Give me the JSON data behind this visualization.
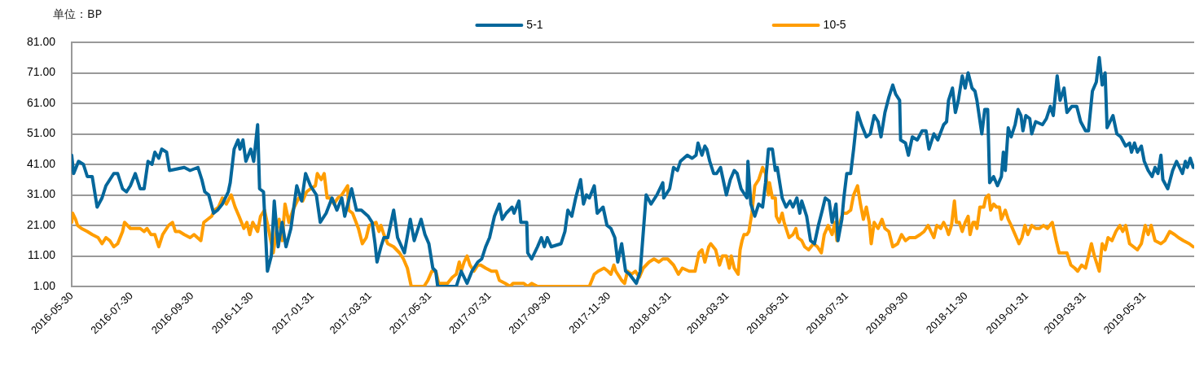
{
  "chart_data": {
    "type": "line",
    "ylabel": "单位：BP",
    "legend": "top",
    "grid": "y",
    "xlim": [
      "2016-05-30",
      "2019-07-21"
    ],
    "xticks": [
      "2016-05-30",
      "2016-07-30",
      "2016-09-30",
      "2016-11-30",
      "2017-01-31",
      "2017-03-31",
      "2017-05-31",
      "2017-07-31",
      "2017-09-30",
      "2017-11-30",
      "2018-01-31",
      "2018-03-31",
      "2018-05-31",
      "2018-07-31",
      "2018-09-30",
      "2018-11-30",
      "2019-01-31",
      "2019-03-31",
      "2019-05-31"
    ],
    "ylim": [
      1,
      81
    ],
    "yticks": [
      {
        "value": 1,
        "label": "1.00"
      },
      {
        "value": 11,
        "label": "11.00"
      },
      {
        "value": 21,
        "label": "21.00"
      },
      {
        "value": 31,
        "label": "31.00"
      },
      {
        "value": 41,
        "label": "41.00"
      },
      {
        "value": 51,
        "label": "51.00"
      },
      {
        "value": 61,
        "label": "61.00"
      },
      {
        "value": 71,
        "label": "71.00"
      },
      {
        "value": 81,
        "label": "81.00"
      }
    ],
    "series": [
      {
        "name": "5-1",
        "color": "#05679b",
        "x": [
          "2016-05-30",
          "2016-06-01",
          "2016-06-06",
          "2016-06-11",
          "2016-06-15",
          "2016-06-20",
          "2016-06-25",
          "2016-06-30",
          "2016-07-04",
          "2016-07-12",
          "2016-07-16",
          "2016-07-21",
          "2016-07-25",
          "2016-07-29",
          "2016-08-03",
          "2016-08-08",
          "2016-08-12",
          "2016-08-16",
          "2016-08-20",
          "2016-08-23",
          "2016-08-27",
          "2016-08-30",
          "2016-09-04",
          "2016-09-07",
          "2016-09-22",
          "2016-09-28",
          "2016-10-06",
          "2016-10-10",
          "2016-10-13",
          "2016-10-17",
          "2016-10-22",
          "2016-10-26",
          "2016-10-31",
          "2016-11-06",
          "2016-11-08",
          "2016-11-12",
          "2016-11-16",
          "2016-11-18",
          "2016-11-21",
          "2016-11-24",
          "2016-11-29",
          "2016-12-02",
          "2016-12-06",
          "2016-12-08",
          "2016-12-12",
          "2016-12-16",
          "2016-12-20",
          "2016-12-23",
          "2016-12-27",
          "2016-12-31",
          "2017-01-04",
          "2017-01-09",
          "2017-01-15",
          "2017-01-20",
          "2017-01-24",
          "2017-01-29",
          "2017-02-04",
          "2017-02-08",
          "2017-02-14",
          "2017-02-20",
          "2017-02-25",
          "2017-03-02",
          "2017-03-05",
          "2017-03-12",
          "2017-03-17",
          "2017-03-22",
          "2017-03-29",
          "2017-04-02",
          "2017-04-05",
          "2017-04-07",
          "2017-04-11",
          "2017-04-14",
          "2017-04-18",
          "2017-04-24",
          "2017-04-28",
          "2017-05-05",
          "2017-05-11",
          "2017-05-15",
          "2017-05-18",
          "2017-05-22",
          "2017-05-26",
          "2017-05-30",
          "2017-06-03",
          "2017-06-06",
          "2017-06-08",
          "2017-06-21",
          "2017-06-27",
          "2017-07-02",
          "2017-07-08",
          "2017-07-13",
          "2017-07-19",
          "2017-07-23",
          "2017-07-27",
          "2017-07-31",
          "2017-08-05",
          "2017-08-10",
          "2017-08-13",
          "2017-08-17",
          "2017-08-23",
          "2017-08-25",
          "2017-08-30",
          "2017-09-01",
          "2017-09-07",
          "2017-09-08",
          "2017-09-12",
          "2017-09-18",
          "2017-09-22",
          "2017-09-25",
          "2017-09-28",
          "2017-10-02",
          "2017-10-12",
          "2017-10-16",
          "2017-10-19",
          "2017-10-23",
          "2017-10-27",
          "2017-11-01",
          "2017-11-04",
          "2017-11-07",
          "2017-11-10",
          "2017-11-15",
          "2017-11-18",
          "2017-11-24",
          "2017-11-28",
          "2017-12-02",
          "2017-12-06",
          "2017-12-09",
          "2017-12-13",
          "2017-12-17",
          "2017-12-21",
          "2017-12-28",
          "2018-01-01",
          "2018-01-07",
          "2018-01-12",
          "2018-01-18",
          "2018-01-24",
          "2018-01-25",
          "2018-01-31",
          "2018-02-04",
          "2018-02-08",
          "2018-02-11",
          "2018-02-18",
          "2018-02-23",
          "2018-02-27",
          "2018-03-01",
          "2018-03-05",
          "2018-03-08",
          "2018-03-10",
          "2018-03-13",
          "2018-03-17",
          "2018-03-20",
          "2018-03-24",
          "2018-03-30",
          "2018-04-03",
          "2018-04-07",
          "2018-04-10",
          "2018-04-14",
          "2018-04-20",
          "2018-04-21",
          "2018-04-24",
          "2018-04-28",
          "2018-05-02",
          "2018-05-06",
          "2018-05-09",
          "2018-05-12",
          "2018-05-16",
          "2018-05-19",
          "2018-05-21",
          "2018-05-26",
          "2018-05-30",
          "2018-06-03",
          "2018-06-06",
          "2018-06-10",
          "2018-06-13",
          "2018-06-15",
          "2018-06-20",
          "2018-06-24",
          "2018-06-28",
          "2018-07-02",
          "2018-07-06",
          "2018-07-09",
          "2018-07-13",
          "2018-07-16",
          "2018-07-20",
          "2018-07-22",
          "2018-07-26",
          "2018-07-28",
          "2018-07-31",
          "2018-08-04",
          "2018-08-07",
          "2018-08-11",
          "2018-08-15",
          "2018-08-20",
          "2018-08-24",
          "2018-08-28",
          "2018-09-01",
          "2018-09-04",
          "2018-09-08",
          "2018-09-12",
          "2018-09-16",
          "2018-09-19",
          "2018-09-23",
          "2018-09-24",
          "2018-09-29",
          "2018-10-02",
          "2018-10-06",
          "2018-10-11",
          "2018-10-16",
          "2018-10-20",
          "2018-10-23",
          "2018-10-28",
          "2018-11-01",
          "2018-11-07",
          "2018-11-10",
          "2018-11-12",
          "2018-11-16",
          "2018-11-19",
          "2018-11-22",
          "2018-11-26",
          "2018-11-29",
          "2018-12-02",
          "2018-12-06",
          "2018-12-09",
          "2018-12-11",
          "2018-12-16",
          "2018-12-19",
          "2018-12-22",
          "2018-12-24",
          "2018-12-28",
          "2019-01-01",
          "2019-01-05",
          "2019-01-07",
          "2019-01-09",
          "2019-01-12",
          "2019-01-15",
          "2019-01-19",
          "2019-01-22",
          "2019-01-25",
          "2019-01-27",
          "2019-01-30",
          "2019-02-03",
          "2019-02-05",
          "2019-02-09",
          "2019-02-16",
          "2019-02-20",
          "2019-02-24",
          "2019-02-27",
          "2019-03-03",
          "2019-03-06",
          "2019-03-10",
          "2019-03-13",
          "2019-03-18",
          "2019-03-23",
          "2019-03-27",
          "2019-04-01",
          "2019-04-04",
          "2019-04-08",
          "2019-04-12",
          "2019-04-15",
          "2019-04-18",
          "2019-04-21",
          "2019-04-23",
          "2019-04-29",
          "2019-05-03",
          "2019-05-07",
          "2019-05-12",
          "2019-05-16",
          "2019-05-18",
          "2019-05-21",
          "2019-05-24",
          "2019-05-28",
          "2019-05-31",
          "2019-06-04",
          "2019-06-08",
          "2019-06-11",
          "2019-06-14",
          "2019-06-17",
          "2019-06-19",
          "2019-06-24",
          "2019-06-29",
          "2019-07-03",
          "2019-07-06",
          "2019-07-09",
          "2019-07-12",
          "2019-07-14",
          "2019-07-17",
          "2019-07-20"
        ],
        "values": [
          44,
          38,
          42,
          41,
          37,
          37,
          27,
          30,
          34,
          38,
          38,
          33,
          32,
          34,
          38,
          33,
          33,
          42,
          41,
          45,
          43,
          46,
          45,
          39,
          40,
          39,
          40,
          36,
          32,
          31,
          25,
          26,
          28,
          32,
          35,
          46,
          49,
          46,
          49,
          42,
          46,
          42,
          54,
          33,
          32,
          6,
          11,
          29,
          14,
          22,
          14,
          20,
          34,
          29,
          38,
          34,
          31,
          22,
          25,
          30,
          26,
          30,
          24,
          33,
          26,
          26,
          24,
          22,
          15,
          9,
          14,
          17,
          17,
          26,
          17,
          12,
          23,
          16,
          19,
          23,
          18,
          15,
          7,
          6,
          1,
          1,
          1,
          6,
          2,
          6,
          9,
          10,
          14,
          17,
          24,
          28,
          23,
          25,
          27,
          25,
          29,
          22,
          22,
          12,
          10,
          14,
          17,
          14,
          17,
          14,
          15,
          19,
          26,
          24,
          30,
          36,
          28,
          31,
          30,
          34,
          25,
          27,
          21,
          20,
          17,
          9,
          15,
          6,
          5,
          2,
          6,
          31,
          28,
          31,
          35,
          30,
          33,
          40,
          39,
          42,
          44,
          43,
          44,
          48,
          44,
          47,
          46,
          42,
          38,
          38,
          40,
          31,
          36,
          39,
          38,
          33,
          30,
          42,
          28,
          24,
          28,
          27,
          35,
          46,
          46,
          39,
          40,
          30,
          27,
          29,
          27,
          30,
          25,
          29,
          24,
          16,
          15,
          21,
          26,
          30,
          29,
          22,
          28,
          16,
          23,
          30,
          38,
          38,
          46,
          58,
          54,
          50,
          51,
          57,
          55,
          50,
          58,
          63,
          67,
          64,
          62,
          49,
          48,
          44,
          50,
          49,
          52,
          52,
          46,
          51,
          49,
          54,
          55,
          62,
          66,
          58,
          62,
          70,
          66,
          71,
          66,
          65,
          62,
          51,
          59,
          59,
          35,
          37,
          34,
          37,
          45,
          39,
          53,
          50,
          54,
          59,
          57,
          52,
          57,
          56,
          51,
          55,
          54,
          56,
          60,
          57,
          70,
          62,
          66,
          58,
          60,
          60,
          55,
          52,
          52,
          65,
          68,
          76,
          67,
          71,
          53,
          57,
          51,
          50,
          47,
          48,
          45,
          48,
          45,
          47,
          42,
          39,
          37,
          40,
          38,
          44,
          36,
          33,
          39,
          42,
          40,
          38,
          42,
          40,
          43,
          40
        ]
      },
      {
        "name": "10-5",
        "color": "#ff9d00",
        "x": [
          "2016-05-30",
          "2016-05-31",
          "2016-06-03",
          "2016-06-05",
          "2016-06-09",
          "2016-06-15",
          "2016-06-20",
          "2016-06-26",
          "2016-06-30",
          "2016-07-04",
          "2016-07-08",
          "2016-07-12",
          "2016-07-16",
          "2016-07-21",
          "2016-07-23",
          "2016-07-29",
          "2016-08-03",
          "2016-08-08",
          "2016-08-12",
          "2016-08-15",
          "2016-08-19",
          "2016-08-23",
          "2016-08-27",
          "2016-08-31",
          "2016-09-06",
          "2016-09-10",
          "2016-09-13",
          "2016-09-17",
          "2016-09-22",
          "2016-09-28",
          "2016-10-02",
          "2016-10-09",
          "2016-10-12",
          "2016-10-16",
          "2016-10-20",
          "2016-10-23",
          "2016-10-27",
          "2016-10-31",
          "2016-11-04",
          "2016-11-09",
          "2016-11-13",
          "2016-11-17",
          "2016-11-22",
          "2016-11-25",
          "2016-11-28",
          "2016-12-01",
          "2016-12-06",
          "2016-12-09",
          "2016-12-13",
          "2016-12-17",
          "2016-12-22",
          "2016-12-26",
          "2016-12-28",
          "2016-12-31",
          "2017-01-03",
          "2017-01-07",
          "2017-01-11",
          "2017-01-17",
          "2017-01-21",
          "2017-01-25",
          "2017-01-29",
          "2017-02-03",
          "2017-02-05",
          "2017-02-09",
          "2017-02-12",
          "2017-02-15",
          "2017-02-18",
          "2017-02-22",
          "2017-02-26",
          "2017-03-02",
          "2017-03-08",
          "2017-03-09",
          "2017-03-13",
          "2017-03-19",
          "2017-03-23",
          "2017-03-27",
          "2017-03-30",
          "2017-04-06",
          "2017-04-09",
          "2017-04-11",
          "2017-04-14",
          "2017-04-18",
          "2017-04-24",
          "2017-04-30",
          "2017-05-04",
          "2017-05-08",
          "2017-05-12",
          "2017-05-25",
          "2017-05-29",
          "2017-06-02",
          "2017-06-06",
          "2017-06-09",
          "2017-06-12",
          "2017-06-18",
          "2017-06-23",
          "2017-06-27",
          "2017-06-30",
          "2017-07-02",
          "2017-07-05",
          "2017-07-08",
          "2017-07-11",
          "2017-07-15",
          "2017-07-19",
          "2017-07-22",
          "2017-07-27",
          "2017-08-02",
          "2017-08-07",
          "2017-08-10",
          "2017-08-16",
          "2017-08-21",
          "2017-08-24",
          "2017-08-30",
          "2017-09-04",
          "2017-09-08",
          "2017-09-12",
          "2017-09-18",
          "2017-10-02",
          "2017-10-05",
          "2017-10-19",
          "2017-10-27",
          "2017-11-10",
          "2017-11-15",
          "2017-11-19",
          "2017-11-25",
          "2017-11-29",
          "2017-12-02",
          "2017-12-05",
          "2017-12-07",
          "2017-12-13",
          "2017-12-16",
          "2017-12-19",
          "2017-12-23",
          "2017-12-27",
          "2017-12-31",
          "2018-01-04",
          "2018-01-10",
          "2018-01-15",
          "2018-01-20",
          "2018-01-24",
          "2018-01-29",
          "2018-02-04",
          "2018-02-09",
          "2018-02-13",
          "2018-02-20",
          "2018-02-26",
          "2018-03-02",
          "2018-03-05",
          "2018-03-08",
          "2018-03-12",
          "2018-03-14",
          "2018-03-19",
          "2018-03-23",
          "2018-03-26",
          "2018-03-30",
          "2018-04-02",
          "2018-04-04",
          "2018-04-07",
          "2018-04-11",
          "2018-04-13",
          "2018-04-15",
          "2018-04-17",
          "2018-04-20",
          "2018-04-22",
          "2018-04-25",
          "2018-04-28",
          "2018-05-02",
          "2018-05-06",
          "2018-05-09",
          "2018-05-12",
          "2018-05-13",
          "2018-05-16",
          "2018-05-19",
          "2018-05-20",
          "2018-05-23",
          "2018-05-26",
          "2018-05-28",
          "2018-06-02",
          "2018-06-06",
          "2018-06-09",
          "2018-06-11",
          "2018-06-15",
          "2018-06-18",
          "2018-06-22",
          "2018-06-27",
          "2018-07-01",
          "2018-07-05",
          "2018-07-08",
          "2018-07-12",
          "2018-07-16",
          "2018-07-19",
          "2018-07-21",
          "2018-07-24",
          "2018-07-27",
          "2018-07-31",
          "2018-08-04",
          "2018-08-07",
          "2018-08-11",
          "2018-08-14",
          "2018-08-17",
          "2018-08-20",
          "2018-08-23",
          "2018-08-25",
          "2018-08-28",
          "2018-09-01",
          "2018-09-05",
          "2018-09-08",
          "2018-09-12",
          "2018-09-16",
          "2018-09-21",
          "2018-09-25",
          "2018-09-29",
          "2018-10-03",
          "2018-10-09",
          "2018-10-14",
          "2018-10-18",
          "2018-10-22",
          "2018-10-28",
          "2018-10-31",
          "2018-11-04",
          "2018-11-07",
          "2018-11-10",
          "2018-11-12",
          "2018-11-15",
          "2018-11-18",
          "2018-11-20",
          "2018-11-23",
          "2018-11-26",
          "2018-11-29",
          "2018-12-02",
          "2018-12-04",
          "2018-12-07",
          "2018-12-09",
          "2018-12-11",
          "2018-12-14",
          "2018-12-18",
          "2018-12-20",
          "2018-12-23",
          "2018-12-25",
          "2018-12-28",
          "2018-12-31",
          "2019-01-03",
          "2019-01-05",
          "2019-01-09",
          "2019-01-12",
          "2019-01-15",
          "2019-01-19",
          "2019-01-23",
          "2019-01-26",
          "2019-01-29",
          "2019-02-01",
          "2019-02-05",
          "2019-02-09",
          "2019-02-13",
          "2019-02-17",
          "2019-02-21",
          "2019-02-26",
          "2019-03-02",
          "2019-03-05",
          "2019-03-09",
          "2019-03-13",
          "2019-03-17",
          "2019-03-21",
          "2019-03-24",
          "2019-03-28",
          "2019-04-01",
          "2019-04-04",
          "2019-04-07",
          "2019-04-10",
          "2019-04-15",
          "2019-04-18",
          "2019-04-21",
          "2019-04-24",
          "2019-04-28",
          "2019-05-02",
          "2019-05-06",
          "2019-05-09",
          "2019-05-12",
          "2019-05-16",
          "2019-05-20",
          "2019-05-24",
          "2019-05-28",
          "2019-06-01",
          "2019-06-04",
          "2019-06-07",
          "2019-06-11",
          "2019-06-17",
          "2019-06-21",
          "2019-06-26",
          "2019-07-01",
          "2019-07-05",
          "2019-07-10",
          "2019-07-16",
          "2019-07-20"
        ],
        "values": [
          22,
          25,
          23,
          21,
          20,
          19,
          18,
          17,
          15,
          17,
          16,
          14,
          15,
          19,
          22,
          20,
          20,
          20,
          19,
          20,
          18,
          18,
          14,
          18,
          21,
          22,
          19,
          19,
          18,
          17,
          18,
          16,
          22,
          23,
          24,
          26,
          27,
          30,
          28,
          31,
          27,
          24,
          20,
          22,
          18,
          22,
          19,
          24,
          26,
          20,
          12,
          21,
          23,
          16,
          28,
          22,
          26,
          30,
          29,
          32,
          33,
          34,
          38,
          36,
          38,
          30,
          30,
          28,
          30,
          31,
          34,
          26,
          25,
          20,
          15,
          17,
          21,
          22,
          19,
          21,
          18,
          15,
          14,
          12,
          10,
          7,
          1,
          1,
          3,
          6,
          6,
          2,
          2,
          2,
          4,
          5,
          9,
          6,
          9,
          11,
          8,
          6,
          8,
          8,
          7,
          6,
          6,
          3,
          2,
          1,
          2,
          2,
          2,
          1,
          2,
          1,
          1,
          1,
          1,
          1,
          1,
          5,
          6,
          7,
          6,
          5,
          8,
          6,
          3,
          2,
          6,
          5,
          6,
          4,
          7,
          9,
          10,
          9,
          10,
          10,
          8,
          5,
          7,
          6,
          6,
          12,
          13,
          9,
          14,
          15,
          13,
          8,
          11,
          11,
          7,
          11,
          7,
          5,
          13,
          16,
          18,
          18,
          19,
          25,
          34,
          36,
          40,
          38,
          31,
          35,
          30,
          30,
          24,
          22,
          25,
          22,
          17,
          18,
          20,
          17,
          16,
          14,
          13,
          15,
          14,
          12,
          18,
          21,
          18,
          22,
          16,
          22,
          25,
          25,
          26,
          31,
          34,
          28,
          23,
          27,
          22,
          15,
          22,
          20,
          23,
          20,
          19,
          14,
          15,
          18,
          16,
          17,
          17,
          18,
          19,
          21,
          17,
          21,
          20,
          22,
          20,
          18,
          21,
          29,
          22,
          22,
          19,
          22,
          24,
          18,
          22,
          22,
          20,
          27,
          27,
          30,
          31,
          26,
          28,
          27,
          27,
          23,
          26,
          23,
          21,
          18,
          15,
          17,
          21,
          18,
          21,
          20,
          20,
          21,
          20,
          22,
          16,
          12,
          12,
          12,
          8,
          7,
          6,
          8,
          7,
          11,
          15,
          11,
          6,
          15,
          13,
          17,
          16,
          19,
          21,
          19,
          21,
          15,
          14,
          13,
          15,
          21,
          18,
          21,
          16,
          15,
          16,
          19,
          18,
          17,
          16,
          15,
          14
        ]
      }
    ]
  }
}
